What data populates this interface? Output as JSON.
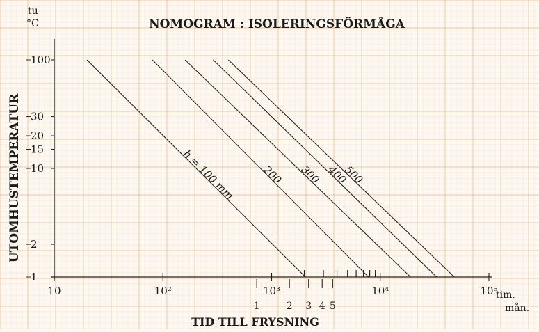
{
  "chart_data": {
    "type": "line",
    "title": "NOMOGRAM : ISOLERINGSFÖRMÅGA",
    "ylabel": "UTOMHUSTEMPERATUR",
    "y_unit_top": "tu",
    "y_unit_bottom": "°C",
    "xlabel": "TID TILL FRYSNING",
    "x_unit_top": "tim.",
    "x_unit_bottom": "mån.",
    "x_scale": "log",
    "y_scale": "log",
    "xlim": [
      10,
      100000
    ],
    "ylim": [
      1,
      100
    ],
    "x_ticks": [
      {
        "value": 10,
        "label": "10"
      },
      {
        "value": 100,
        "label": "10²"
      },
      {
        "value": 1000,
        "label": "10³"
      },
      {
        "value": 10000,
        "label": "10⁴"
      },
      {
        "value": 100000,
        "label": "10⁵"
      }
    ],
    "y_ticks": [
      {
        "value": 100,
        "label": "100"
      },
      {
        "value": 30,
        "label": "30"
      },
      {
        "value": 20,
        "label": "20"
      },
      {
        "value": 15,
        "label": "15"
      },
      {
        "value": 10,
        "label": "10"
      },
      {
        "value": 2,
        "label": "2"
      },
      {
        "value": 1,
        "label": "1"
      }
    ],
    "month_ticks": [
      {
        "value": 730,
        "label": "1"
      },
      {
        "value": 1460,
        "label": "2"
      },
      {
        "value": 2190,
        "label": "3"
      },
      {
        "value": 2920,
        "label": "4"
      },
      {
        "value": 3650,
        "label": "5"
      }
    ],
    "series": [
      {
        "name": "h = 100 mm",
        "x": [
          20,
          2050
        ],
        "y": [
          100,
          1
        ]
      },
      {
        "name": "200",
        "x": [
          80,
          7800
        ],
        "y": [
          100,
          1
        ]
      },
      {
        "name": "300",
        "x": [
          160,
          19000
        ],
        "y": [
          100,
          1
        ]
      },
      {
        "name": "400",
        "x": [
          290,
          33000
        ],
        "y": [
          100,
          1
        ]
      },
      {
        "name": "500",
        "x": [
          400,
          48000
        ],
        "y": [
          100,
          1
        ]
      }
    ],
    "line_color": "#222222",
    "grid": true,
    "grid_color": "#e8b98a",
    "paper_color": "#fdf8f1"
  }
}
